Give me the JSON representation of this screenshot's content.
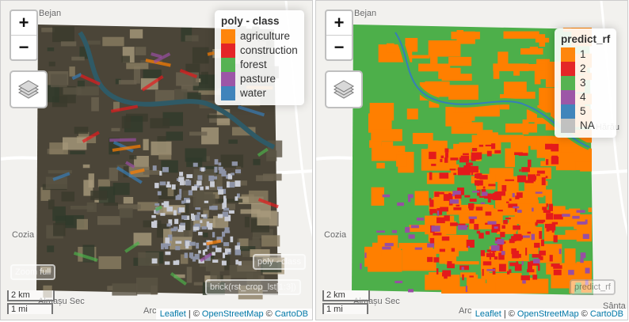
{
  "maps": [
    {
      "zoom": [
        "+",
        "−"
      ],
      "place_labels": [
        "Bejan",
        "Cozia",
        "Almașu Sec",
        "Arc"
      ],
      "legend": {
        "title": "poly - class",
        "items": [
          {
            "label": "agriculture",
            "color": "#ff7f00"
          },
          {
            "label": "construction",
            "color": "#e41a1c"
          },
          {
            "label": "forest",
            "color": "#4daf4a"
          },
          {
            "label": "pasture",
            "color": "#984ea3"
          },
          {
            "label": "water",
            "color": "#377eb8"
          }
        ]
      },
      "buttons": [
        "Zoom full",
        "poly - class",
        "brick(rst_crop_lst[1:3])"
      ],
      "scale": [
        "2 km",
        "1 mi"
      ],
      "attribution": [
        "Leaflet",
        "| ©",
        "OpenStreetMap",
        "©",
        "CartoDB"
      ]
    },
    {
      "zoom": [
        "+",
        "−"
      ],
      "place_labels": [
        "Bejan",
        "Hărău",
        "Cozia",
        "Sânta",
        "Almașu Sec",
        "Arc"
      ],
      "legend": {
        "title": "predict_rf",
        "items": [
          {
            "label": "1",
            "color": "#ff7f00"
          },
          {
            "label": "2",
            "color": "#e41a1c"
          },
          {
            "label": "3",
            "color": "#4daf4a"
          },
          {
            "label": "4",
            "color": "#984ea3"
          },
          {
            "label": "5",
            "color": "#377eb8"
          },
          {
            "label": "NA",
            "color": "#bebebe"
          }
        ]
      },
      "buttons": [
        "predict_rf"
      ],
      "scale": [
        "2 km",
        "1 mi"
      ],
      "attribution": [
        "Leaflet",
        "| ©",
        "OpenStreetMap",
        "©",
        "CartoDB"
      ]
    }
  ]
}
